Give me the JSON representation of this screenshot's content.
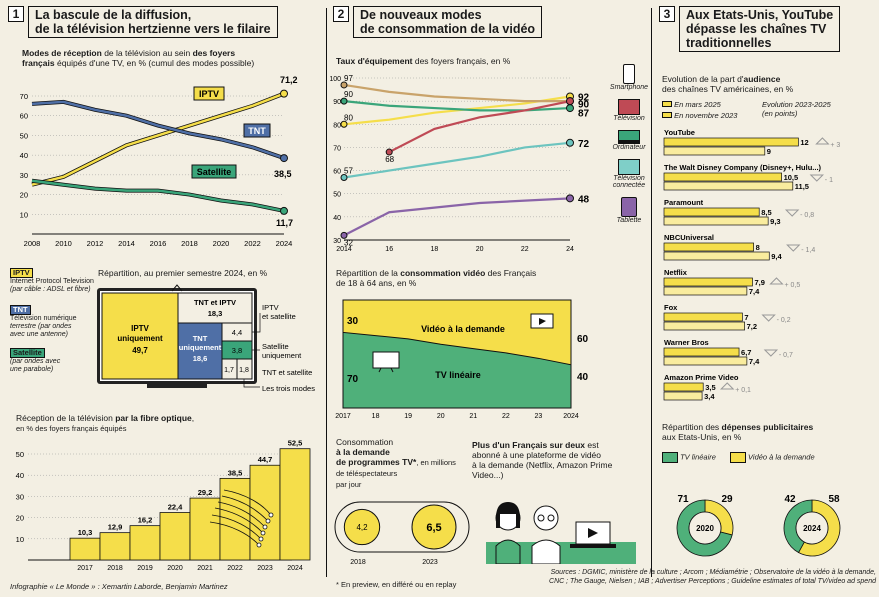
{
  "colors": {
    "iptv": "#f5de4a",
    "tnt": "#4f6fa6",
    "sat": "#3aa57a",
    "cable": "#bf4a55",
    "purple": "#8a64a8",
    "bg": "#f3efe3",
    "yellow": "#f5de4a",
    "green": "#4fb07a"
  },
  "section1": {
    "num": "1",
    "title_l1": "La bascule de la diffusion,",
    "title_l2": "de la télévision hertzienne vers le filaire",
    "line_title_b": "Modes de réception",
    "line_title_rest": " de la télévision au sein ",
    "line_title_b2": "des foyers",
    "line_title_l2b": "français",
    "line_title_l2": " équipés d'une TV, en % (cumul des modes possible)",
    "chart_labels": {
      "iptv": "IPTV",
      "tnt": "TNT",
      "sat": "Satellite",
      "iptv_end": "71,2",
      "tnt_end": "38,5",
      "sat_end": "11,7"
    },
    "legend": {
      "iptv_tag": "IPTV",
      "iptv_desc1": "Internet Protocol Television",
      "iptv_desc2": "(par câble : ADSL et fibre)",
      "tnt_tag": "TNT",
      "tnt_desc1": "Télévision numérique",
      "tnt_desc2": "terrestre (par ondes",
      "tnt_desc3": "avec une antenne)",
      "sat_tag": "Satellite",
      "sat_desc1": "(par ondes avec",
      "sat_desc2": "une parabole)"
    },
    "treemap_title": "Répartition",
    "treemap_title_rest": ", au premier semestre 2024, en %",
    "treemap": {
      "iptv_l1": "IPTV",
      "iptv_l2": "uniquement",
      "iptv_v": "49,7",
      "tnt_iptv_l1": "TNT et IPTV",
      "tnt_iptv_v": "18,3",
      "tnt_l1": "TNT",
      "tnt_l2": "uniquement",
      "tnt_v": "18,6",
      "v44": "4,4",
      "v38": "3,8",
      "v17": "1,7",
      "v18": "1,8",
      "lbl_iptv_sat_1": "IPTV",
      "lbl_iptv_sat_2": "et satellite",
      "lbl_sat_1": "Satellite",
      "lbl_sat_2": "uniquement",
      "lbl_tnt_sat": "TNT et satellite",
      "lbl_three": "Les trois modes"
    },
    "fibre_title_1": "Réception de la télévision ",
    "fibre_title_b": "par la fibre optique",
    "fibre_title_2": ",",
    "fibre_sub": "en % des foyers français équipés",
    "credit": "Infographie « Le Monde » : Xemartin Laborde, Benjamin Martinez"
  },
  "section2": {
    "num": "2",
    "title_l1": "De nouveaux modes",
    "title_l2": "de consommation de la vidéo",
    "line_title": "Taux d'équipement",
    "line_title_rest": " des foyers français, en %",
    "start_labels": [
      "97",
      "90",
      "80",
      "68",
      "57",
      "32"
    ],
    "end_labels": [
      "92",
      "90",
      "87",
      "72",
      "48"
    ],
    "devices": [
      "Smartphone",
      "Télévision",
      "Ordinateur",
      "Télévision connectée",
      "Tablette"
    ],
    "area_title_1": "Répartition de la ",
    "area_title_b": "consommation vidéo",
    "area_title_2": " des Français",
    "area_title_3": "de 18 à 64 ans, en %",
    "area_labels": {
      "vod": "Vidéo à la demande",
      "lin": "TV linéaire",
      "s30": "30",
      "s70": "70",
      "e60": "60",
      "e40": "40"
    },
    "conso_title": "Consommation",
    "conso_b1": "à la demande",
    "conso_b2": "de programmes TV*",
    "conso_sub1": ", en millions de téléspectateurs",
    "conso_sub2": "par jour",
    "conso": {
      "v2018": "4,2",
      "v2023": "6,5",
      "y2018": "2018",
      "y2023": "2023"
    },
    "footnote": "* En preview, en différé ou en replay",
    "plus_b": "Plus d'un Français sur deux",
    "plus_rest1": " est",
    "plus_rest2": "abonné à une plateforme de vidéo",
    "plus_rest3": "à la demande (Netflix, Amazon Prime",
    "plus_rest4": "Video...)"
  },
  "section3": {
    "num": "3",
    "title_l1": "Aux Etats-Unis, YouTube",
    "title_l2": "dépasse les chaînes TV",
    "title_l3": "traditionnelles",
    "bars_title_1": "Evolution de la part d'",
    "bars_title_b": "audience",
    "bars_title_2": "des chaînes TV américaines, en %",
    "legend_mar": "En mars 2025",
    "legend_nov": "En novembre 2023",
    "legend_evo1": "Evolution 2023-2025",
    "legend_evo2": "(en points)",
    "pub_title_1": "Répartition des ",
    "pub_title_b": "dépenses publicitaires",
    "pub_title_2": "aux Etats-Unis, en %",
    "pub_legend_lin": "TV linéaire",
    "pub_legend_vod": "Vidéo à la demande",
    "donuts": [
      {
        "year": "2020",
        "lin": "71",
        "vod": "29"
      },
      {
        "year": "2024",
        "lin": "42",
        "vod": "58"
      }
    ]
  },
  "sources": "Sources : DGMIC, ministère de la culture ; Arcom ; Médiamétrie ; Observatoire de la vidéo à la demande,",
  "sources2": "CNC ; The Gauge, Nielsen ; IAB ; Advertiser Perceptions ; Guideline estimates of total TV/video ad spend",
  "chart_data": [
    {
      "type": "line",
      "title": "Modes de réception de la télévision au sein des foyers français équipés d'une TV, en % (cumul des modes possible)",
      "x": [
        2008,
        2010,
        2012,
        2014,
        2016,
        2018,
        2020,
        2022,
        2024
      ],
      "ylim": [
        0,
        70
      ],
      "yticks": [
        10,
        20,
        30,
        40,
        50,
        60,
        70
      ],
      "xticks": [
        "2008",
        "2010",
        "2012",
        "2014",
        "2016",
        "2018",
        "2020",
        "2022",
        "2024"
      ],
      "series": [
        {
          "name": "IPTV",
          "values": [
            25,
            29,
            37,
            45,
            50,
            55,
            60,
            65,
            71.2
          ]
        },
        {
          "name": "TNT",
          "values": [
            66,
            67,
            63,
            60,
            55,
            51,
            48,
            44,
            38.5
          ]
        },
        {
          "name": "Satellite",
          "values": [
            27,
            25,
            23,
            22,
            22,
            20,
            17,
            15,
            11.7
          ]
        }
      ]
    },
    {
      "type": "table",
      "title": "Répartition, au premier semestre 2024, en %",
      "categories": [
        "IPTV uniquement",
        "TNT et IPTV",
        "TNT uniquement",
        "IPTV et satellite",
        "Satellite uniquement",
        "TNT et satellite",
        "Les trois modes"
      ],
      "values": [
        49.7,
        18.3,
        18.6,
        4.4,
        3.8,
        1.7,
        1.8
      ]
    },
    {
      "type": "bar",
      "title": "Réception de la télévision par la fibre optique, en % des foyers français équipés",
      "categories": [
        "2017",
        "2018",
        "2019",
        "2020",
        "2021",
        "2022",
        "2023",
        "2024"
      ],
      "values": [
        10.3,
        12.9,
        16.2,
        22.4,
        29.2,
        38.5,
        44.7,
        52.5
      ],
      "labels": [
        "10,3",
        "12,9",
        "16,2",
        "22,4",
        "29,2",
        "38,5",
        "44,7",
        "52,5"
      ],
      "ylim": [
        0,
        50
      ],
      "yticks": [
        10,
        20,
        30,
        40,
        50
      ]
    },
    {
      "type": "line",
      "title": "Taux d'équipement des foyers français, en %",
      "x": [
        2014,
        2016,
        2018,
        2020,
        2022,
        2024
      ],
      "xticks": [
        "2014",
        "16",
        "18",
        "20",
        "22",
        "24"
      ],
      "ylim": [
        30,
        100
      ],
      "yticks": [
        30,
        40,
        50,
        60,
        70,
        80,
        90,
        100
      ],
      "series": [
        {
          "name": "Smartphone",
          "values": [
            80,
            82,
            85,
            87,
            89,
            92
          ]
        },
        {
          "name": "Télévision",
          "values": [
            97,
            94,
            92,
            91,
            90,
            90
          ]
        },
        {
          "name": "Ordinateur",
          "values": [
            90,
            88,
            87,
            86,
            86,
            87
          ]
        },
        {
          "name": "Télévision connectée",
          "values": [
            57,
            60,
            63,
            66,
            70,
            72
          ]
        },
        {
          "name": "Tablette",
          "values": [
            32,
            42,
            44,
            46,
            47,
            48
          ]
        },
        {
          "name": "",
          "values": [
            null,
            68,
            78,
            83,
            86,
            90
          ]
        }
      ]
    },
    {
      "type": "area",
      "title": "Répartition de la consommation vidéo des Français de 18 à 64 ans, en %",
      "x": [
        2017,
        2018,
        2019,
        2020,
        2021,
        2022,
        2023,
        2024
      ],
      "xticks": [
        "2017",
        "18",
        "19",
        "20",
        "21",
        "22",
        "23",
        "2024"
      ],
      "ylim": [
        0,
        100
      ],
      "series": [
        {
          "name": "Vidéo à la demande",
          "values": [
            30,
            33,
            36,
            41,
            45,
            49,
            54,
            60
          ]
        },
        {
          "name": "TV linéaire",
          "values": [
            70,
            67,
            64,
            59,
            55,
            51,
            46,
            40
          ]
        }
      ]
    },
    {
      "type": "bar",
      "title": "Consommation à la demande de programmes TV*, en millions de téléspectateurs par jour",
      "categories": [
        "2018",
        "2023"
      ],
      "values": [
        4.2,
        6.5
      ]
    },
    {
      "type": "bar",
      "title": "Evolution de la part d'audience des chaînes TV américaines, en %",
      "categories": [
        "YouTube",
        "The Walt Disney Company (Disney+, Hulu...)",
        "Paramount",
        "NBCUniversal",
        "Netflix",
        "Fox",
        "Warner Bros",
        "Amazon Prime Video"
      ],
      "series": [
        {
          "name": "En mars 2025",
          "values": [
            12,
            10.5,
            8.5,
            8,
            7.9,
            7,
            6.7,
            3.5
          ]
        },
        {
          "name": "En novembre 2023",
          "values": [
            9,
            11.5,
            9.3,
            9.4,
            7.4,
            7.2,
            7.4,
            3.4
          ]
        }
      ],
      "labels_mar": [
        "12",
        "10,5",
        "8,5",
        "8",
        "7,9",
        "7",
        "6,7",
        "3,5"
      ],
      "labels_nov": [
        "9",
        "11,5",
        "9,3",
        "9,4",
        "7,4",
        "7,2",
        "7,4",
        "3,4"
      ],
      "evolution": [
        "+ 3",
        "- 1",
        "- 0,8",
        "- 1,4",
        "+ 0,5",
        "- 0,2",
        "- 0,7",
        "+ 0,1"
      ]
    },
    {
      "type": "pie",
      "title": "Répartition des dépenses publicitaires aux Etats-Unis, en %",
      "categories": [
        "2020",
        "2024"
      ],
      "series": [
        {
          "name": "TV linéaire",
          "values": [
            71,
            42
          ]
        },
        {
          "name": "Vidéo à la demande",
          "values": [
            29,
            58
          ]
        }
      ]
    }
  ]
}
